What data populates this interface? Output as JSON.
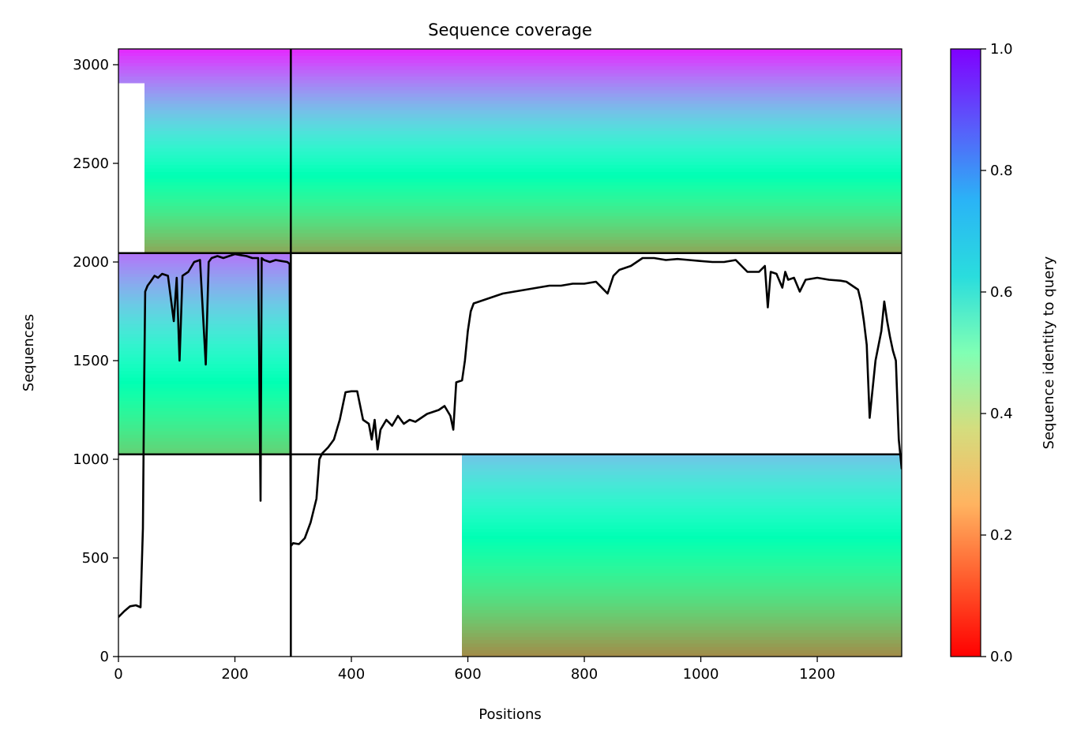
{
  "chart_data": {
    "type": "heatmap",
    "title": "Sequence coverage",
    "xlabel": "Positions",
    "ylabel": "Sequences",
    "xlim": [
      0,
      1345
    ],
    "ylim": [
      0,
      3080
    ],
    "xticks": [
      0,
      200,
      400,
      600,
      800,
      1000,
      1200
    ],
    "yticks": [
      0,
      500,
      1000,
      1500,
      2000,
      2500,
      3000
    ],
    "grid": false,
    "colorbar": {
      "label": "Sequence identity to query",
      "colormap": "rainbow",
      "range": [
        0.0,
        1.0
      ],
      "ticks": [
        0.0,
        0.2,
        0.4,
        0.6,
        0.8,
        1.0
      ]
    },
    "chain_boundaries": {
      "x": [
        296
      ],
      "y": [
        1025,
        2045
      ]
    },
    "blocks": [
      {
        "name": "",
        "x": [
          0,
          296
        ],
        "y": [
          2045,
          3080
        ],
        "coverage_start": [
          [
            0,
            2900
          ],
          [
            45,
            2045
          ]
        ],
        "identity_top": 0.95,
        "identity_bottom": 0.22
      },
      {
        "name": "",
        "x": [
          0,
          296
        ],
        "y": [
          1025,
          2045
        ],
        "coverage_start": [
          [
            0,
            1025
          ],
          [
            45,
            1025
          ]
        ],
        "identity_top": 0.85,
        "identity_bottom": 0.3
      },
      {
        "name": "",
        "x": [
          296,
          1345
        ],
        "y": [
          2045,
          3080
        ],
        "coverage_start": [
          [
            296,
            2045
          ],
          [
            590,
            2045
          ]
        ],
        "identity_top": 0.95,
        "identity_bottom": 0.22
      },
      {
        "name": "",
        "x": [
          296,
          1345
        ],
        "y": [
          0,
          1025
        ],
        "coverage_start": [
          [
            296,
            1025
          ],
          [
            590,
            0
          ]
        ],
        "identity_top": 0.72,
        "identity_bottom": 0.18
      }
    ],
    "series": [
      {
        "type": "line",
        "x": [
          0,
          10,
          20,
          30,
          38,
          42,
          44,
          46,
          50,
          55,
          62,
          68,
          75,
          85,
          95,
          100,
          105,
          110,
          120,
          130,
          140,
          150,
          155,
          160,
          170,
          180,
          190,
          200,
          210,
          220,
          230,
          240,
          244,
          246,
          250,
          260,
          270,
          280,
          290,
          294,
          296,
          300,
          310,
          320,
          330,
          340,
          345,
          350,
          360,
          370,
          380,
          390,
          400,
          410,
          420,
          430,
          435,
          440,
          445,
          450,
          460,
          470,
          480,
          490,
          500,
          510,
          520,
          530,
          540,
          550,
          560,
          570,
          575,
          580,
          590,
          595,
          600,
          605,
          610,
          620,
          640,
          660,
          680,
          700,
          720,
          740,
          760,
          780,
          800,
          820,
          840,
          850,
          860,
          880,
          890,
          900,
          920,
          940,
          960,
          980,
          1000,
          1020,
          1040,
          1060,
          1080,
          1100,
          1110,
          1115,
          1120,
          1130,
          1140,
          1145,
          1150,
          1160,
          1170,
          1180,
          1200,
          1220,
          1240,
          1250,
          1260,
          1270,
          1275,
          1280,
          1285,
          1290,
          1300,
          1310,
          1315,
          1320,
          1325,
          1330,
          1335,
          1340,
          1345
        ],
        "y": [
          200,
          230,
          255,
          260,
          250,
          650,
          1350,
          1850,
          1880,
          1900,
          1930,
          1920,
          1940,
          1930,
          1700,
          1920,
          1500,
          1930,
          1950,
          2000,
          2010,
          1480,
          2000,
          2020,
          2030,
          2020,
          2030,
          2040,
          2035,
          2030,
          2020,
          2020,
          790,
          2020,
          2010,
          2000,
          2010,
          2005,
          2000,
          1990,
          560,
          575,
          570,
          600,
          680,
          800,
          1000,
          1030,
          1060,
          1100,
          1200,
          1340,
          1345,
          1345,
          1200,
          1180,
          1100,
          1200,
          1050,
          1150,
          1200,
          1170,
          1220,
          1180,
          1200,
          1190,
          1210,
          1230,
          1240,
          1250,
          1270,
          1220,
          1150,
          1390,
          1400,
          1500,
          1650,
          1750,
          1790,
          1800,
          1820,
          1840,
          1850,
          1860,
          1870,
          1880,
          1880,
          1890,
          1890,
          1900,
          1840,
          1930,
          1960,
          1980,
          2000,
          2020,
          2020,
          2010,
          2015,
          2010,
          2005,
          2000,
          2000,
          2010,
          1950,
          1950,
          1980,
          1770,
          1950,
          1940,
          1870,
          1950,
          1910,
          1920,
          1850,
          1910,
          1920,
          1910,
          1905,
          1900,
          1880,
          1860,
          1800,
          1700,
          1580,
          1210,
          1500,
          1650,
          1800,
          1700,
          1620,
          1550,
          1500,
          1100,
          950
        ]
      }
    ]
  }
}
